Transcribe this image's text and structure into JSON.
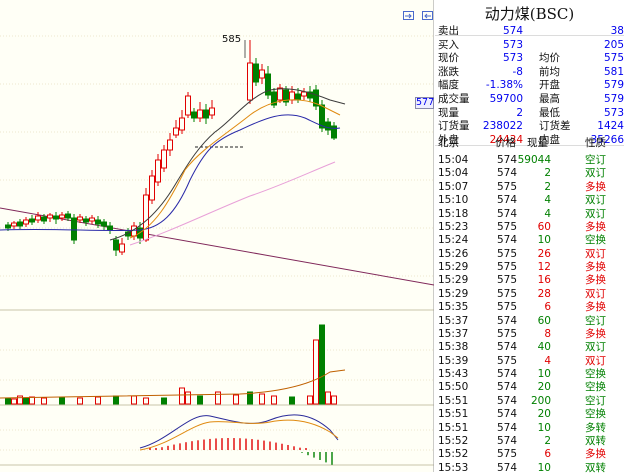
{
  "title": "动力煤(BSC)",
  "colors": {
    "up": "#e00000",
    "down": "#008000",
    "grid": "#d9d0a8"
  },
  "chart": {
    "peak_label": "585",
    "price_tag": "577"
  },
  "quote": {
    "rows": [
      {
        "l1": "卖出",
        "v1": "574",
        "c1": "blue",
        "l2": "",
        "v2": "38",
        "c2": "blue"
      },
      {
        "l1": "买入",
        "v1": "573",
        "c1": "blue",
        "l2": "",
        "v2": "205",
        "c2": "blue"
      },
      {
        "l1": "现价",
        "v1": "573",
        "c1": "blue",
        "l2": "均价",
        "v2": "575",
        "c2": "blue"
      },
      {
        "l1": "涨跌",
        "v1": "-8",
        "c1": "blue",
        "l2": "前均",
        "v2": "581",
        "c2": "blue"
      },
      {
        "l1": "幅度",
        "v1": "-1.38%",
        "c1": "blue",
        "l2": "开盘",
        "v2": "579",
        "c2": "blue"
      },
      {
        "l1": "成交量",
        "v1": "59700",
        "c1": "blue",
        "l2": "最高",
        "v2": "579",
        "c2": "blue"
      },
      {
        "l1": "现量",
        "v1": "2",
        "c1": "blue",
        "l2": "最低",
        "v2": "573",
        "c2": "blue"
      },
      {
        "l1": "订货量",
        "v1": "238022",
        "c1": "blue",
        "l2": "订货差",
        "v2": "1424",
        "c2": "blue"
      },
      {
        "l1": "外盘",
        "v1": "24434",
        "c1": "red",
        "l2": "内盘",
        "v2": "35266",
        "c2": "blue"
      }
    ]
  },
  "ticks": {
    "headers": [
      "北京",
      "价格",
      "现量",
      "性质"
    ],
    "rows": [
      {
        "time": "15:04",
        "price": "574",
        "vol": "59044",
        "type": "空订",
        "tc": "green",
        "vc": "green"
      },
      {
        "time": "15:04",
        "price": "574",
        "vol": "2",
        "type": "双订",
        "tc": "green",
        "vc": "green"
      },
      {
        "time": "15:07",
        "price": "575",
        "vol": "2",
        "type": "多换",
        "tc": "red",
        "vc": "green"
      },
      {
        "time": "15:10",
        "price": "574",
        "vol": "4",
        "type": "双订",
        "tc": "green",
        "vc": "green"
      },
      {
        "time": "15:18",
        "price": "574",
        "vol": "4",
        "type": "双订",
        "tc": "green",
        "vc": "green"
      },
      {
        "time": "15:23",
        "price": "575",
        "vol": "60",
        "type": "多换",
        "tc": "red",
        "vc": "red"
      },
      {
        "time": "15:24",
        "price": "574",
        "vol": "10",
        "type": "空换",
        "tc": "green",
        "vc": "green"
      },
      {
        "time": "15:26",
        "price": "575",
        "vol": "26",
        "type": "双订",
        "tc": "red",
        "vc": "red"
      },
      {
        "time": "15:29",
        "price": "575",
        "vol": "12",
        "type": "多换",
        "tc": "red",
        "vc": "red"
      },
      {
        "time": "15:29",
        "price": "575",
        "vol": "16",
        "type": "多换",
        "tc": "red",
        "vc": "red"
      },
      {
        "time": "15:29",
        "price": "575",
        "vol": "28",
        "type": "双订",
        "tc": "red",
        "vc": "red"
      },
      {
        "time": "15:35",
        "price": "575",
        "vol": "6",
        "type": "多换",
        "tc": "red",
        "vc": "red"
      },
      {
        "time": "15:37",
        "price": "574",
        "vol": "60",
        "type": "空订",
        "tc": "green",
        "vc": "green"
      },
      {
        "time": "15:37",
        "price": "575",
        "vol": "8",
        "type": "多换",
        "tc": "red",
        "vc": "red"
      },
      {
        "time": "15:38",
        "price": "574",
        "vol": "40",
        "type": "双订",
        "tc": "green",
        "vc": "green"
      },
      {
        "time": "15:39",
        "price": "575",
        "vol": "4",
        "type": "双订",
        "tc": "red",
        "vc": "red"
      },
      {
        "time": "15:43",
        "price": "574",
        "vol": "10",
        "type": "空换",
        "tc": "green",
        "vc": "green"
      },
      {
        "time": "15:50",
        "price": "574",
        "vol": "20",
        "type": "空换",
        "tc": "green",
        "vc": "green"
      },
      {
        "time": "15:51",
        "price": "574",
        "vol": "200",
        "type": "空订",
        "tc": "green",
        "vc": "green"
      },
      {
        "time": "15:51",
        "price": "574",
        "vol": "20",
        "type": "空换",
        "tc": "green",
        "vc": "green"
      },
      {
        "time": "15:51",
        "price": "574",
        "vol": "10",
        "type": "多转",
        "tc": "green",
        "vc": "green"
      },
      {
        "time": "15:52",
        "price": "574",
        "vol": "2",
        "type": "双转",
        "tc": "green",
        "vc": "green"
      },
      {
        "time": "15:52",
        "price": "575",
        "vol": "6",
        "type": "多换",
        "tc": "red",
        "vc": "red"
      },
      {
        "time": "15:53",
        "price": "574",
        "vol": "10",
        "type": "双转",
        "tc": "green",
        "vc": "green"
      }
    ]
  }
}
